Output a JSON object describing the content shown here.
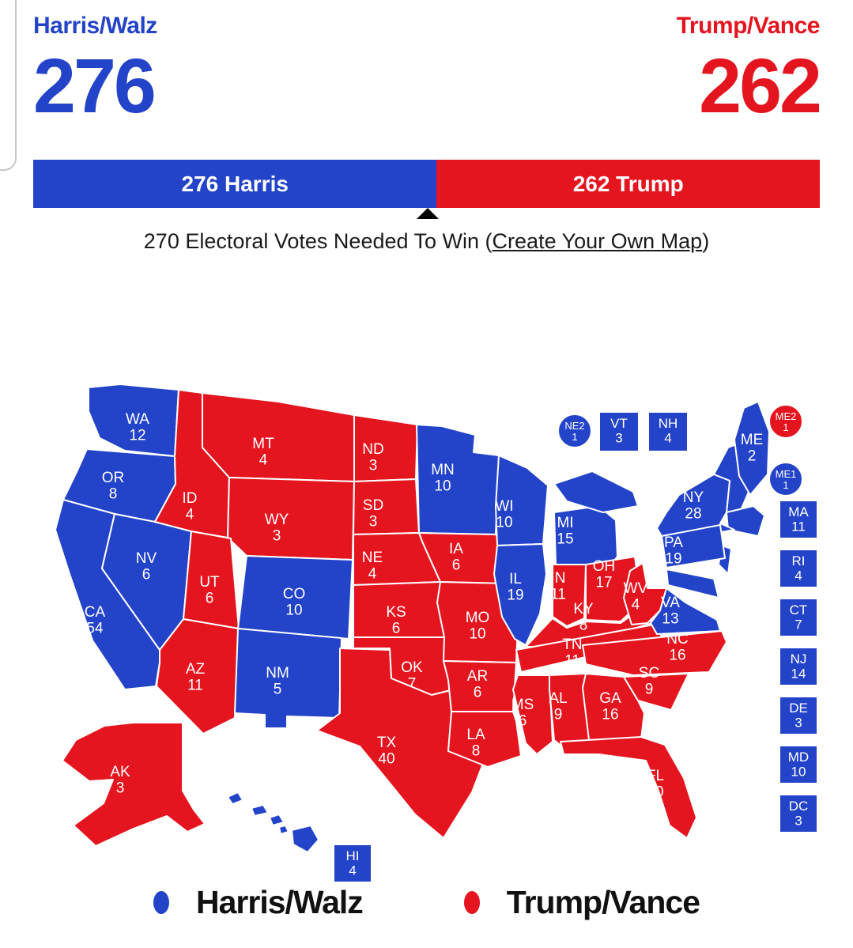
{
  "header": {
    "left": {
      "name": "Harris/Walz",
      "votes": "276"
    },
    "right": {
      "name": "Trump/Vance",
      "votes": "262"
    }
  },
  "bar": {
    "left_label": "276 Harris",
    "right_label": "262 Trump",
    "left_votes": 276,
    "right_votes": 262,
    "total": 538,
    "marker_votes": 270
  },
  "subtitle": {
    "before": "270 Electoral Votes Needed To Win (",
    "link": "Create Your Own Map",
    "after": ")"
  },
  "colors": {
    "democrat": "#2343c9",
    "republican": "#e5151f"
  },
  "legend": [
    {
      "label": "Harris/Walz",
      "party": "D"
    },
    {
      "label": "Trump/Vance",
      "party": "R"
    }
  ],
  "map": {
    "states": [
      {
        "id": "WA",
        "ev": 12,
        "party": "D"
      },
      {
        "id": "OR",
        "ev": 8,
        "party": "D"
      },
      {
        "id": "CA",
        "ev": 54,
        "party": "D"
      },
      {
        "id": "NV",
        "ev": 6,
        "party": "D"
      },
      {
        "id": "ID",
        "ev": 4,
        "party": "R"
      },
      {
        "id": "MT",
        "ev": 4,
        "party": "R"
      },
      {
        "id": "WY",
        "ev": 3,
        "party": "R"
      },
      {
        "id": "UT",
        "ev": 6,
        "party": "R"
      },
      {
        "id": "CO",
        "ev": 10,
        "party": "D"
      },
      {
        "id": "AZ",
        "ev": 11,
        "party": "R"
      },
      {
        "id": "NM",
        "ev": 5,
        "party": "D"
      },
      {
        "id": "ND",
        "ev": 3,
        "party": "R"
      },
      {
        "id": "SD",
        "ev": 3,
        "party": "R"
      },
      {
        "id": "NE",
        "ev": 4,
        "party": "R"
      },
      {
        "id": "KS",
        "ev": 6,
        "party": "R"
      },
      {
        "id": "OK",
        "ev": 7,
        "party": "R"
      },
      {
        "id": "TX",
        "ev": 40,
        "party": "R"
      },
      {
        "id": "MN",
        "ev": 10,
        "party": "D"
      },
      {
        "id": "IA",
        "ev": 6,
        "party": "R"
      },
      {
        "id": "MO",
        "ev": 10,
        "party": "R"
      },
      {
        "id": "AR",
        "ev": 6,
        "party": "R"
      },
      {
        "id": "LA",
        "ev": 8,
        "party": "R"
      },
      {
        "id": "WI",
        "ev": 10,
        "party": "D"
      },
      {
        "id": "IL",
        "ev": 19,
        "party": "D"
      },
      {
        "id": "MI",
        "ev": 15,
        "party": "D"
      },
      {
        "id": "IN",
        "ev": 11,
        "party": "R"
      },
      {
        "id": "OH",
        "ev": 17,
        "party": "R"
      },
      {
        "id": "KY",
        "ev": 8,
        "party": "R"
      },
      {
        "id": "TN",
        "ev": 11,
        "party": "R"
      },
      {
        "id": "MS",
        "ev": 6,
        "party": "R"
      },
      {
        "id": "AL",
        "ev": 9,
        "party": "R"
      },
      {
        "id": "GA",
        "ev": 16,
        "party": "R"
      },
      {
        "id": "WV",
        "ev": 4,
        "party": "R"
      },
      {
        "id": "VA",
        "ev": 13,
        "party": "D"
      },
      {
        "id": "NC",
        "ev": 16,
        "party": "R"
      },
      {
        "id": "SC",
        "ev": 9,
        "party": "R"
      },
      {
        "id": "FL",
        "ev": 30,
        "party": "R"
      },
      {
        "id": "NY",
        "ev": 28,
        "party": "D"
      },
      {
        "id": "PA",
        "ev": 19,
        "party": "D"
      },
      {
        "id": "ME",
        "ev": 2,
        "party": "D"
      },
      {
        "id": "AK",
        "ev": 3,
        "party": "R"
      }
    ],
    "boxes": [
      {
        "id": "NE2",
        "ev": 1,
        "party": "D"
      },
      {
        "id": "VT",
        "ev": 3,
        "party": "D"
      },
      {
        "id": "NH",
        "ev": 4,
        "party": "D"
      },
      {
        "id": "ME2",
        "ev": 1,
        "party": "R"
      },
      {
        "id": "ME1",
        "ev": 1,
        "party": "D"
      },
      {
        "id": "MA",
        "ev": 11,
        "party": "D"
      },
      {
        "id": "RI",
        "ev": 4,
        "party": "D"
      },
      {
        "id": "CT",
        "ev": 7,
        "party": "D"
      },
      {
        "id": "NJ",
        "ev": 14,
        "party": "D"
      },
      {
        "id": "DE",
        "ev": 3,
        "party": "D"
      },
      {
        "id": "MD",
        "ev": 10,
        "party": "D"
      },
      {
        "id": "DC",
        "ev": 3,
        "party": "D"
      },
      {
        "id": "HI",
        "ev": 4,
        "party": "D"
      }
    ]
  }
}
